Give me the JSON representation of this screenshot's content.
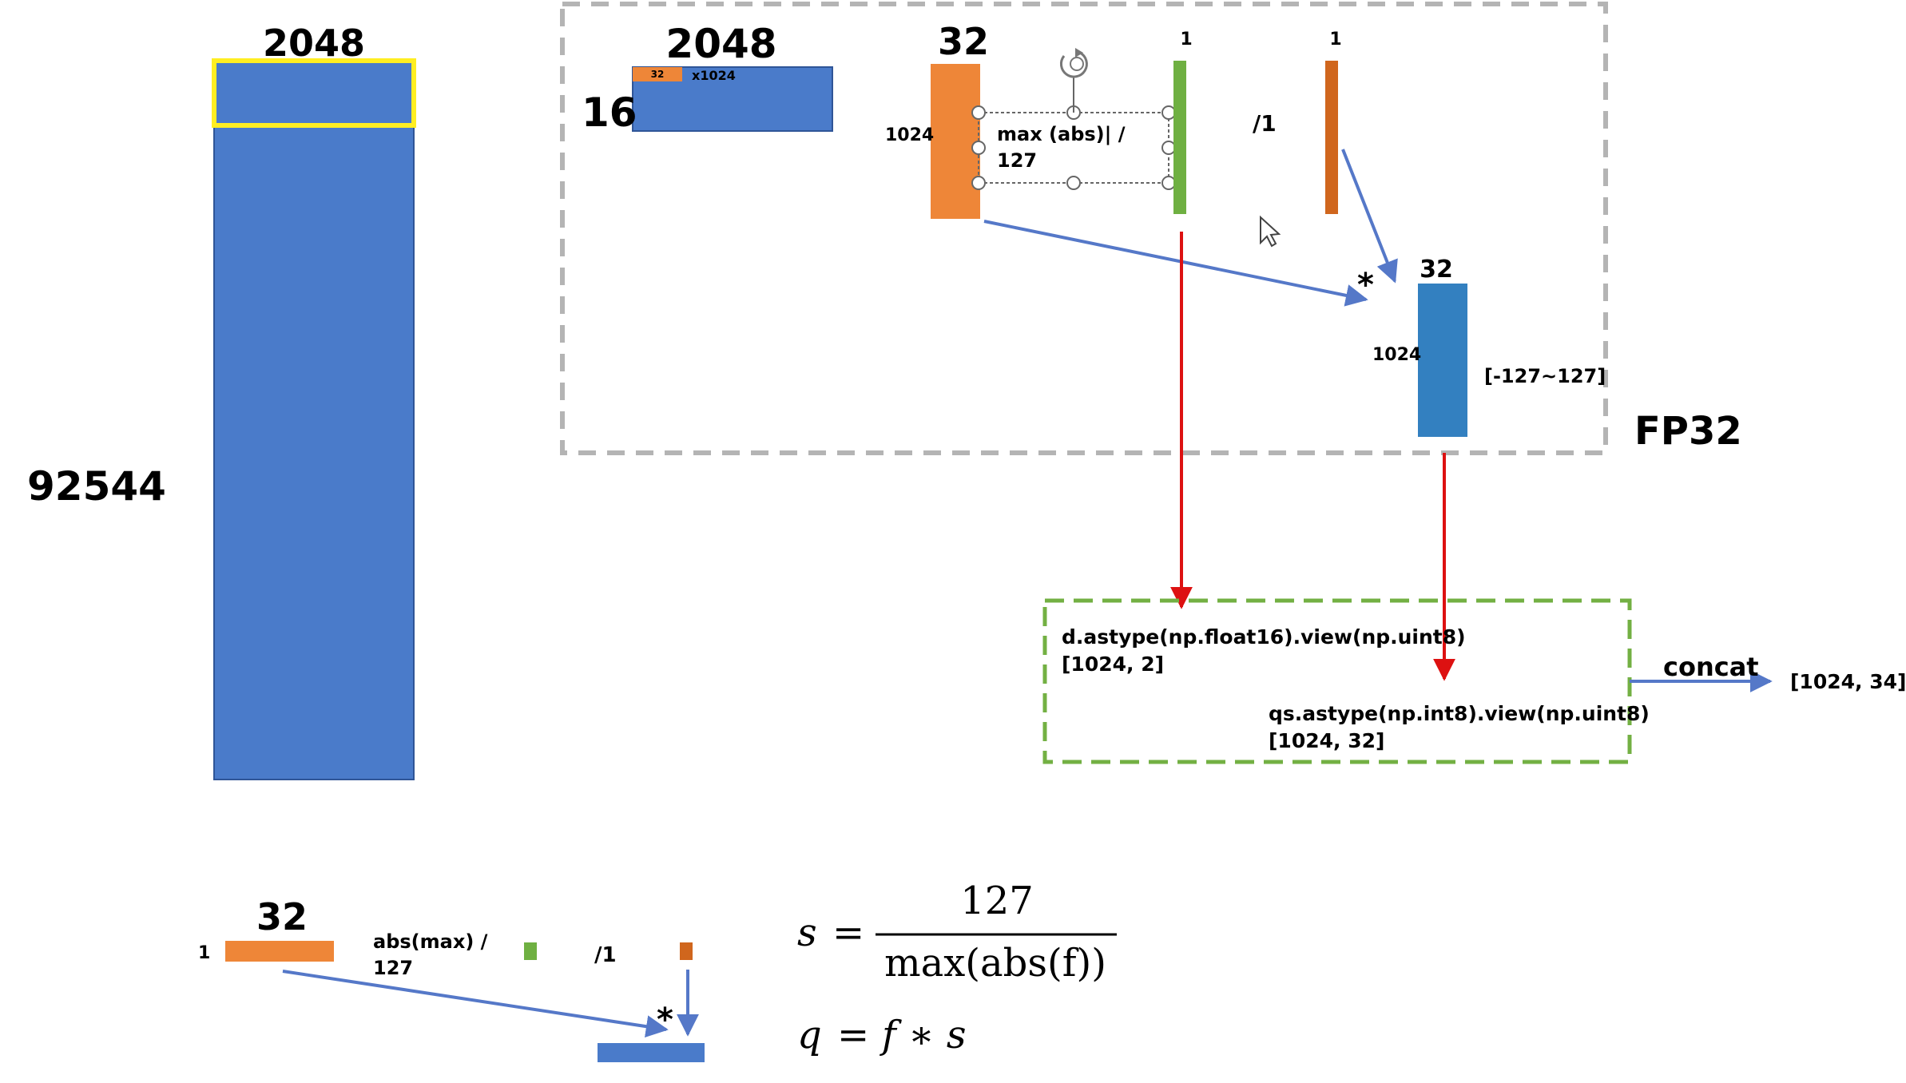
{
  "colors": {
    "blue": "#4a7bca",
    "blue_dark": "#3380c0",
    "orange": "#ee8638",
    "orange_dark": "#d0661d",
    "green": "#6fb042",
    "yellow": "#ffee22",
    "red": "#dd1111",
    "arrow_blue": "#5578c8",
    "dash_gray": "#b4b4b4",
    "dash_green": "#73b043"
  },
  "big_matrix": {
    "width_label": "2048",
    "height_label": "92544"
  },
  "block": {
    "width_label": "2048",
    "rows_label": "16",
    "inner_label": "32",
    "repeat_label": "x1024"
  },
  "group": {
    "cols_label": "32",
    "rows_label": "1024",
    "formula_line1": "max (abs)| /",
    "formula_line2": "127",
    "scale_cols_label": "1",
    "divide_label": "/1",
    "result_cols_label": "1",
    "multiply_label": "*",
    "q_cols_label": "32",
    "q_rows_label": "1024",
    "q_range_label": "[-127~127]",
    "dtype_label": "FP32"
  },
  "output": {
    "line1_code": "d.astype(np.float16).view(np.uint8)",
    "line1_shape": "[1024, 2]",
    "line2_code": "qs.astype(np.int8).view(np.uint8)",
    "line2_shape": "[1024, 32]",
    "concat_label": "concat",
    "final_shape": "[1024, 34]"
  },
  "legend": {
    "cols_label": "32",
    "rows_label": "1",
    "formula_line1": "abs(max) /",
    "formula_line2": "127",
    "divide_label": "/1",
    "multiply_label": "*"
  },
  "equations": {
    "s_lhs": "s",
    "s_eq": "=",
    "s_numerator": "127",
    "s_denominator": "max(abs(f))",
    "q_lhs": "q",
    "q_eq": "=",
    "q_rhs": "f ∗ s"
  }
}
